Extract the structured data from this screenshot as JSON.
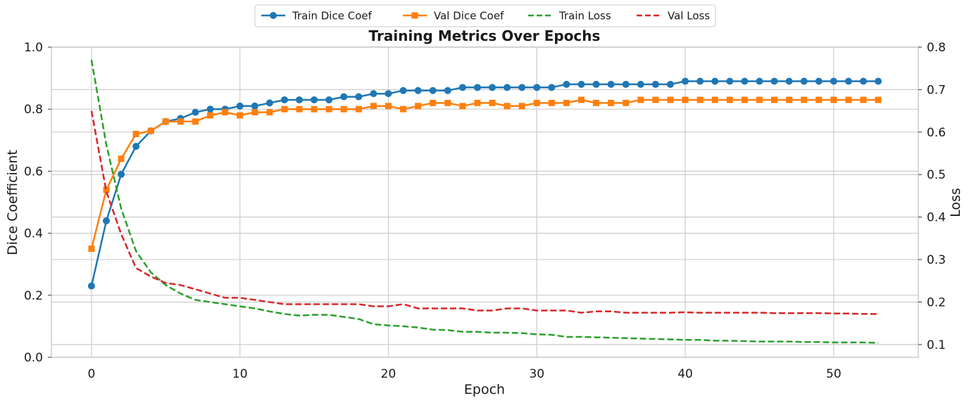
{
  "chart_data": {
    "type": "line",
    "title": "Training Metrics Over Epochs",
    "xlabel": "Epoch",
    "ylabel_left": "Dice Coefficient",
    "ylabel_right": "Loss",
    "xlim": [
      -2.7,
      55.7
    ],
    "ylim_left": [
      0.0,
      1.0
    ],
    "ylim_right": [
      0.07,
      0.8
    ],
    "xticks": [
      0,
      10,
      20,
      30,
      40,
      50
    ],
    "yticks_left": [
      0.0,
      0.2,
      0.4,
      0.6,
      0.8,
      1.0
    ],
    "yticks_right": [
      0.1,
      0.2,
      0.3,
      0.4,
      0.5,
      0.6,
      0.7,
      0.8
    ],
    "grid": true,
    "legend_placement": "top-center",
    "epochs": [
      0,
      1,
      2,
      3,
      4,
      5,
      6,
      7,
      8,
      9,
      10,
      11,
      12,
      13,
      14,
      15,
      16,
      17,
      18,
      19,
      20,
      21,
      22,
      23,
      24,
      25,
      26,
      27,
      28,
      29,
      30,
      31,
      32,
      33,
      34,
      35,
      36,
      37,
      38,
      39,
      40,
      41,
      42,
      43,
      44,
      45,
      46,
      47,
      48,
      49,
      50,
      51,
      52,
      53
    ],
    "series": [
      {
        "name": "Train Dice Coef",
        "axis": "left",
        "color": "#1f77b4",
        "style": "solid",
        "marker": "circle",
        "values": [
          0.23,
          0.44,
          0.59,
          0.68,
          0.73,
          0.76,
          0.77,
          0.79,
          0.8,
          0.8,
          0.81,
          0.81,
          0.82,
          0.83,
          0.83,
          0.83,
          0.83,
          0.84,
          0.84,
          0.85,
          0.85,
          0.86,
          0.86,
          0.86,
          0.86,
          0.87,
          0.87,
          0.87,
          0.87,
          0.87,
          0.87,
          0.87,
          0.88,
          0.88,
          0.88,
          0.88,
          0.88,
          0.88,
          0.88,
          0.88,
          0.89,
          0.89,
          0.89,
          0.89,
          0.89,
          0.89,
          0.89,
          0.89,
          0.89,
          0.89,
          0.89,
          0.89,
          0.89,
          0.89
        ]
      },
      {
        "name": "Val Dice Coef",
        "axis": "left",
        "color": "#ff7f0e",
        "style": "solid",
        "marker": "square",
        "values": [
          0.35,
          0.54,
          0.64,
          0.72,
          0.73,
          0.76,
          0.76,
          0.76,
          0.78,
          0.79,
          0.78,
          0.79,
          0.79,
          0.8,
          0.8,
          0.8,
          0.8,
          0.8,
          0.8,
          0.81,
          0.81,
          0.8,
          0.81,
          0.82,
          0.82,
          0.81,
          0.82,
          0.82,
          0.81,
          0.81,
          0.82,
          0.82,
          0.82,
          0.83,
          0.82,
          0.82,
          0.82,
          0.83,
          0.83,
          0.83,
          0.83,
          0.83,
          0.83,
          0.83,
          0.83,
          0.83,
          0.83,
          0.83,
          0.83,
          0.83,
          0.83,
          0.83,
          0.83,
          0.83
        ]
      },
      {
        "name": "Train Loss",
        "axis": "right",
        "color": "#2ca02c",
        "style": "dashed",
        "marker": "none",
        "values": [
          0.77,
          0.57,
          0.42,
          0.32,
          0.27,
          0.24,
          0.22,
          0.205,
          0.2,
          0.195,
          0.19,
          0.185,
          0.178,
          0.172,
          0.168,
          0.17,
          0.17,
          0.165,
          0.16,
          0.148,
          0.145,
          0.143,
          0.14,
          0.135,
          0.134,
          0.13,
          0.13,
          0.128,
          0.128,
          0.127,
          0.124,
          0.123,
          0.118,
          0.118,
          0.117,
          0.116,
          0.115,
          0.114,
          0.113,
          0.112,
          0.111,
          0.111,
          0.109,
          0.109,
          0.108,
          0.107,
          0.107,
          0.107,
          0.106,
          0.106,
          0.105,
          0.105,
          0.105,
          0.104
        ]
      },
      {
        "name": "Val Loss",
        "axis": "right",
        "color": "#d62728",
        "style": "dashed",
        "marker": "none",
        "values": [
          0.65,
          0.46,
          0.36,
          0.28,
          0.26,
          0.245,
          0.24,
          0.23,
          0.22,
          0.21,
          0.21,
          0.205,
          0.2,
          0.195,
          0.195,
          0.195,
          0.195,
          0.195,
          0.195,
          0.19,
          0.19,
          0.195,
          0.185,
          0.185,
          0.185,
          0.185,
          0.18,
          0.18,
          0.185,
          0.185,
          0.18,
          0.18,
          0.18,
          0.175,
          0.178,
          0.178,
          0.175,
          0.175,
          0.175,
          0.175,
          0.176,
          0.175,
          0.175,
          0.175,
          0.175,
          0.175,
          0.174,
          0.174,
          0.174,
          0.174,
          0.173,
          0.173,
          0.172,
          0.172
        ]
      }
    ]
  }
}
